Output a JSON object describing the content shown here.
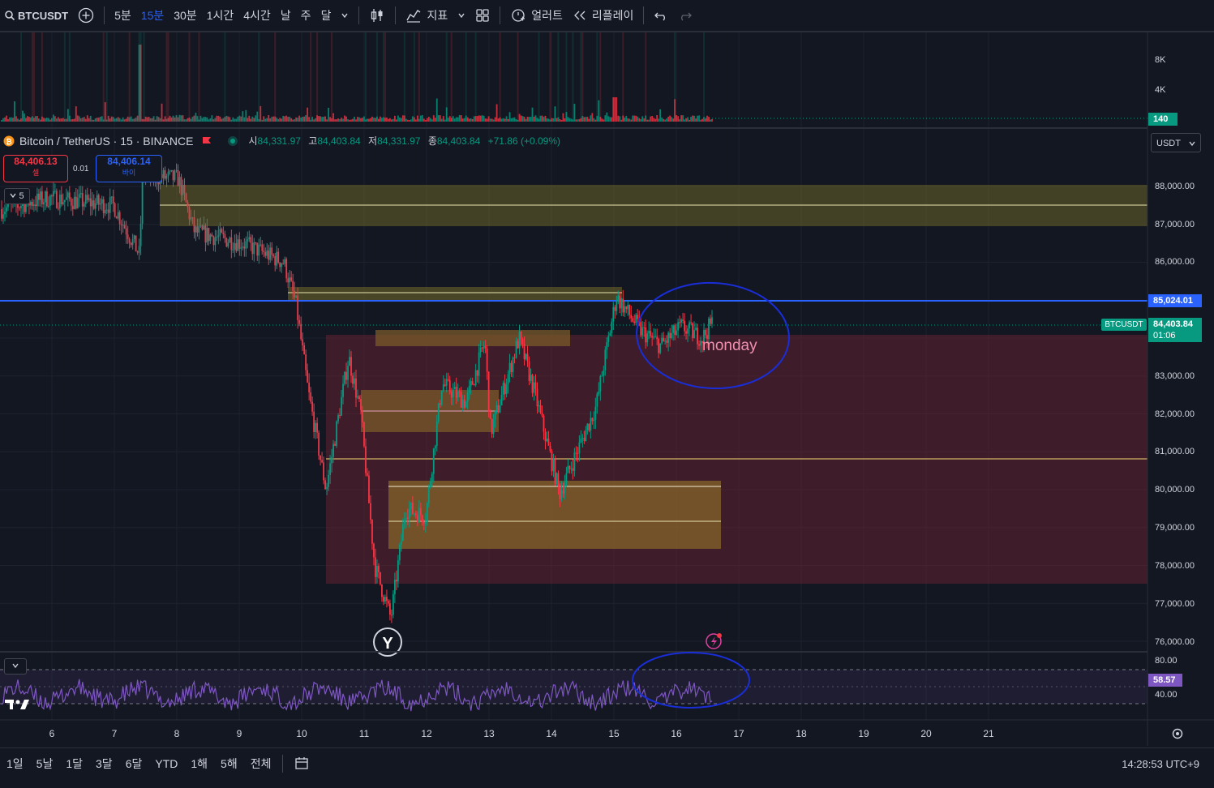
{
  "toolbar": {
    "symbol": "BTCUSDT",
    "intervals": [
      "5분",
      "15분",
      "30분",
      "1시간",
      "4시간",
      "날",
      "주",
      "달"
    ],
    "active_interval": "15분",
    "indicators_label": "지표",
    "alert_label": "얼러트",
    "replay_label": "리플레이"
  },
  "legend": {
    "title": "Bitcoin / TetherUS · 15 · BINANCE",
    "open_key": "시",
    "open": "84,331.97",
    "high_key": "고",
    "high": "84,403.84",
    "low_key": "저",
    "low": "84,331.97",
    "close_key": "종",
    "close": "84,403.84",
    "change": "+71.86 (+0.09%)"
  },
  "trade": {
    "sell_price": "84,406.13",
    "sell_label": "셀",
    "spread": "0.01",
    "buy_price": "84,406.14",
    "buy_label": "바이",
    "indicator_count": "5"
  },
  "currency_select": "USDT",
  "volume_axis": [
    "8K",
    "4K"
  ],
  "volume_last": "140",
  "price_axis": [
    "88,000.00",
    "87,000.00",
    "86,000.00",
    "83,000.00",
    "82,000.00",
    "81,000.00",
    "80,000.00",
    "79,000.00",
    "78,000.00",
    "77,000.00",
    "76,000.00"
  ],
  "hline_price_label": "85,024.01",
  "symbol_tag": "BTCUSDT",
  "last_price_label": "84,403.84",
  "countdown": "01:06",
  "annotation_text": "monday",
  "rsi_axis": [
    "80.00",
    "40.00"
  ],
  "rsi_value": "58.57",
  "dates": [
    "6",
    "7",
    "8",
    "9",
    "10",
    "11",
    "12",
    "13",
    "14",
    "15",
    "16",
    "17",
    "18",
    "19",
    "20",
    "21"
  ],
  "range_buttons": [
    "1일",
    "5날",
    "1달",
    "3달",
    "6달",
    "YTD",
    "1해",
    "5해",
    "전체"
  ],
  "clock": "14:28:53 UTC+9",
  "colors": {
    "up": "#089981",
    "down": "#f23645",
    "hline": "#2962ff",
    "rsi": "#7e57c2",
    "accent": "#2962ff"
  },
  "chart_data": {
    "type": "candlestick",
    "price_range": [
      76000,
      88500
    ],
    "x": [
      "6",
      "7",
      "8",
      "9",
      "10",
      "11",
      "12",
      "13",
      "14",
      "15",
      "16"
    ],
    "approx_daily_close": [
      87300,
      87600,
      86400,
      85900,
      82400,
      80200,
      82000,
      83200,
      81400,
      84600,
      84404
    ],
    "horizontal_line": 85024.01,
    "last": 84403.84
  }
}
